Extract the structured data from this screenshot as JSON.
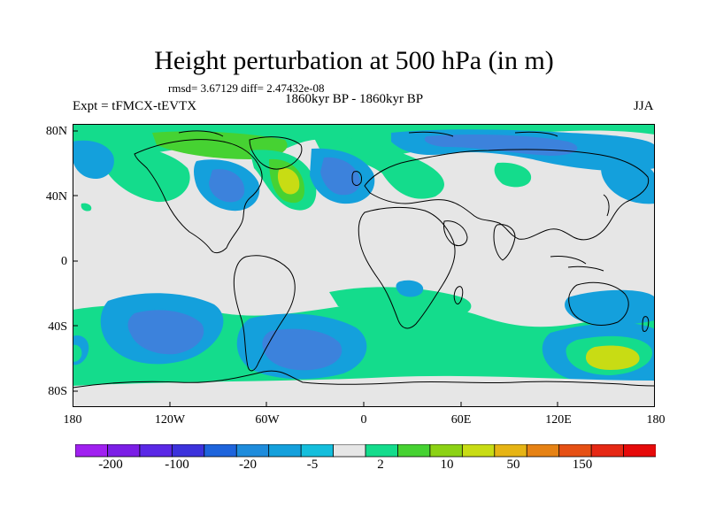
{
  "title": "Height perturbation at 500 hPa (in m)",
  "stats": "rmsd= 3.67129 diff= 2.47432e-08",
  "expt_label": "Expt = tFMCX-tEVTX",
  "period_label": "1860kyr BP - 1860kyr BP",
  "season_label": "JJA",
  "lat_labels": [
    "80N",
    "40N",
    "0",
    "40S",
    "80S"
  ],
  "lon_labels": [
    "180",
    "120W",
    "60W",
    "0",
    "60E",
    "120E",
    "180"
  ],
  "colorbar_labels": [
    "-200",
    "-100",
    "-20",
    "-5",
    "2",
    "10",
    "50",
    "150"
  ],
  "colorbar_colors": [
    "#a020f0",
    "#7b1ee6",
    "#5a28e6",
    "#3c32dc",
    "#1e64dc",
    "#1e8cdc",
    "#14a0dc",
    "#14bedc",
    "#e6e6e6",
    "#14dc8c",
    "#46d232",
    "#8cd214",
    "#c8dc14",
    "#e6b414",
    "#e68214",
    "#e65014",
    "#e62814",
    "#e60a0a"
  ],
  "map_background": "#e6e6e6",
  "colors": {
    "neg_strong": "#3c82dc",
    "neg_med": "#14a0dc",
    "neg_light": "#14bedc",
    "pos_light": "#14dc8c",
    "pos_med": "#46d232",
    "pos_strong": "#c8dc14"
  }
}
